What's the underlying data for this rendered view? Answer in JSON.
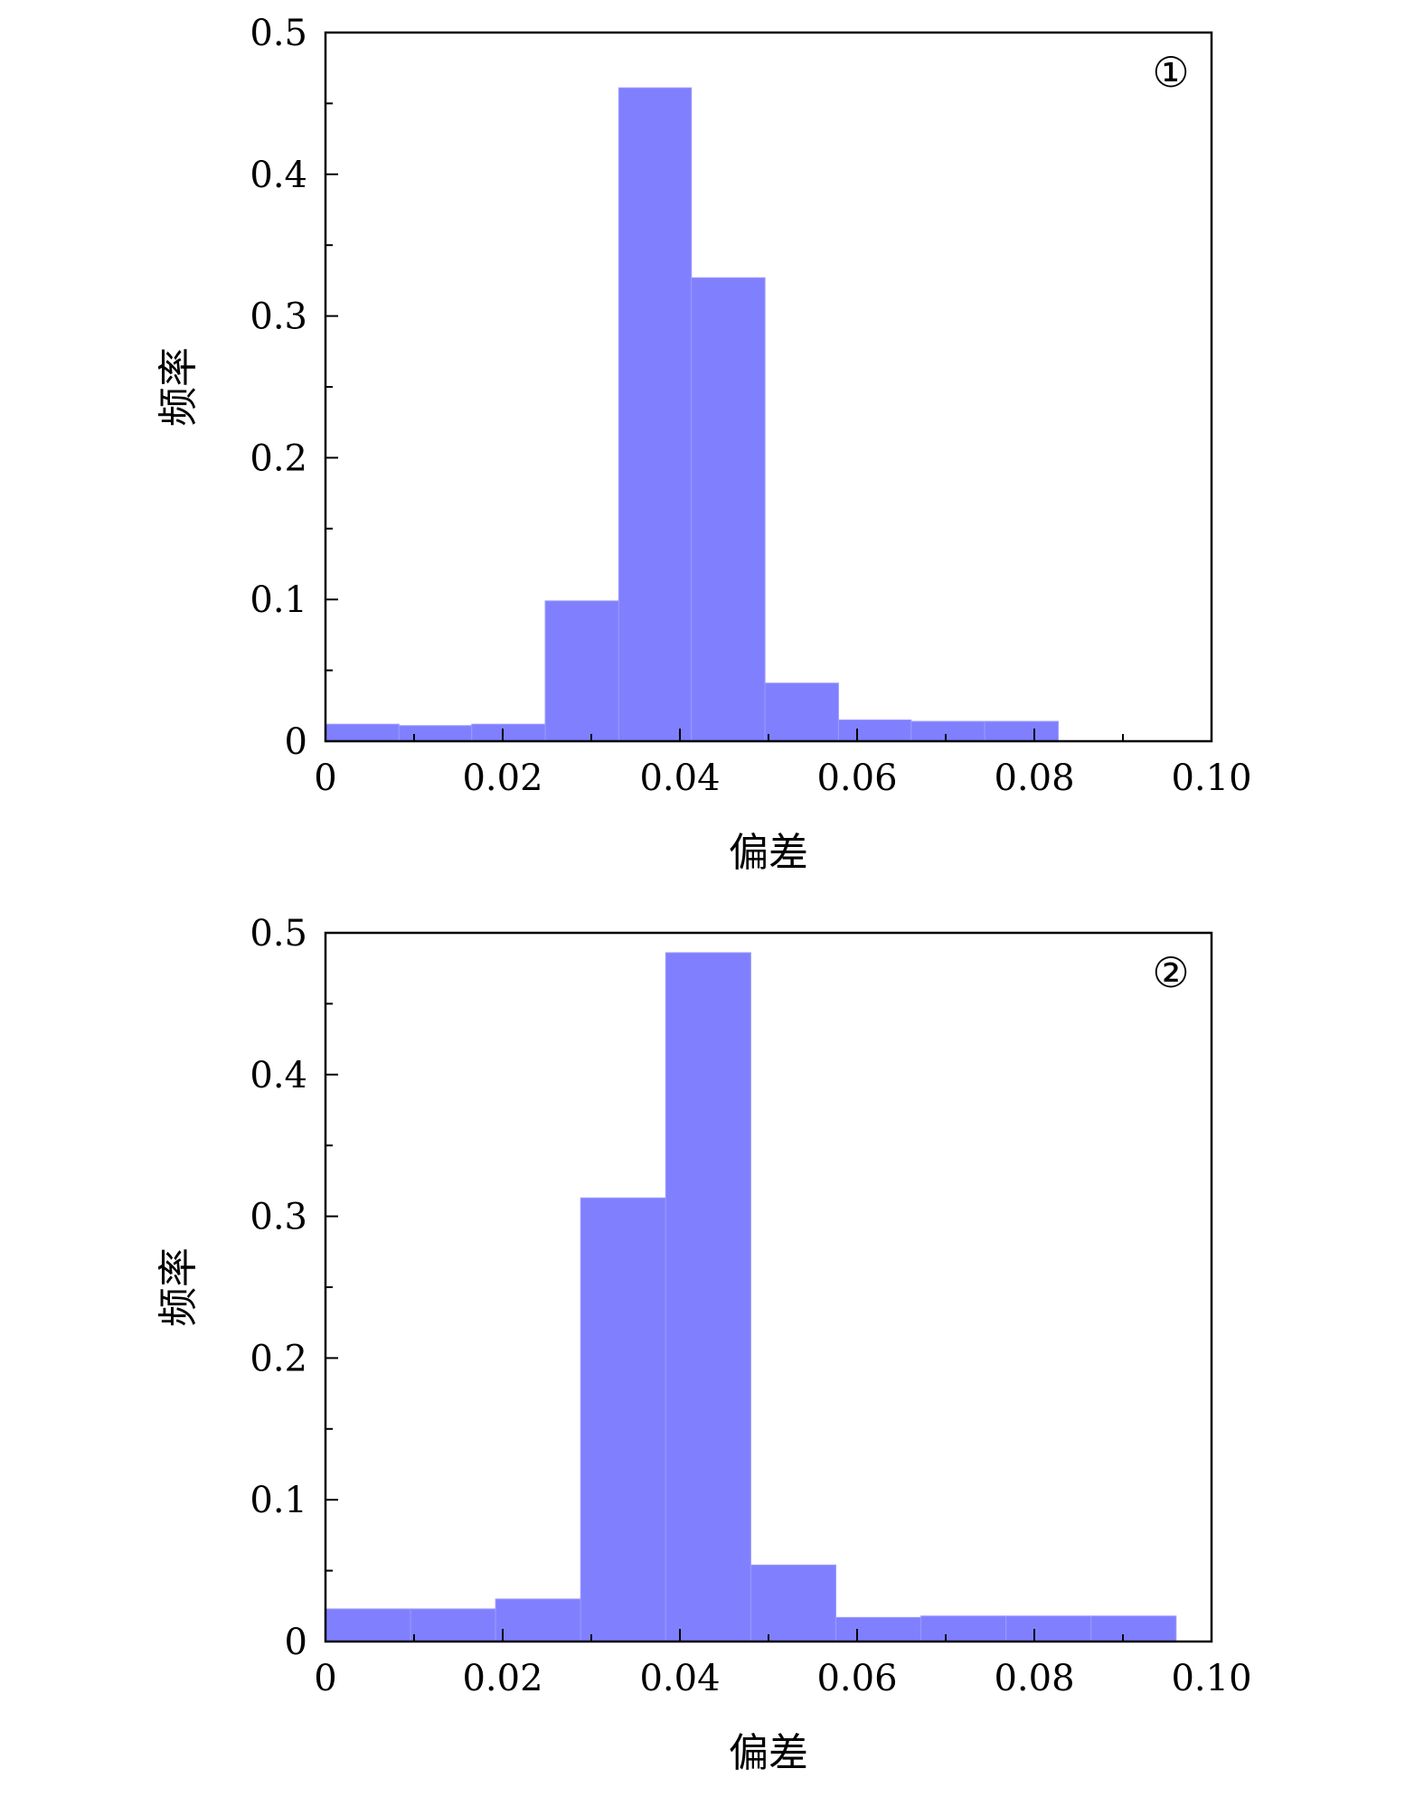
{
  "chart_data": [
    {
      "type": "bar",
      "panel_label": "①",
      "xlabel": "偏差",
      "ylabel": "频率",
      "xlim": [
        0,
        0.1
      ],
      "ylim": [
        0,
        0.5
      ],
      "x_ticks": [
        "0",
        "0.02",
        "0.04",
        "0.06",
        "0.08",
        "0.10"
      ],
      "y_ticks": [
        "0",
        "0.1",
        "0.2",
        "0.3",
        "0.4",
        "0.5"
      ],
      "bar_color": "#8080ff",
      "bin_edges": [
        0,
        0.0083,
        0.0165,
        0.0248,
        0.0331,
        0.0413,
        0.0496,
        0.0579,
        0.0661,
        0.0744,
        0.0827
      ],
      "values": [
        0.012,
        0.011,
        0.012,
        0.099,
        0.461,
        0.327,
        0.041,
        0.015,
        0.014,
        0.014
      ]
    },
    {
      "type": "bar",
      "panel_label": "②",
      "xlabel": "偏差",
      "ylabel": "频率",
      "xlim": [
        0,
        0.1
      ],
      "ylim": [
        0,
        0.5
      ],
      "x_ticks": [
        "0",
        "0.02",
        "0.04",
        "0.06",
        "0.08",
        "0.10"
      ],
      "y_ticks": [
        "0",
        "0.1",
        "0.2",
        "0.3",
        "0.4",
        "0.5"
      ],
      "bar_color": "#8080ff",
      "bin_edges": [
        0,
        0.0096,
        0.0192,
        0.0288,
        0.0384,
        0.048,
        0.0576,
        0.0672,
        0.0768,
        0.0864,
        0.096
      ],
      "values": [
        0.023,
        0.023,
        0.03,
        0.313,
        0.486,
        0.054,
        0.017,
        0.018,
        0.018,
        0.018
      ]
    }
  ]
}
